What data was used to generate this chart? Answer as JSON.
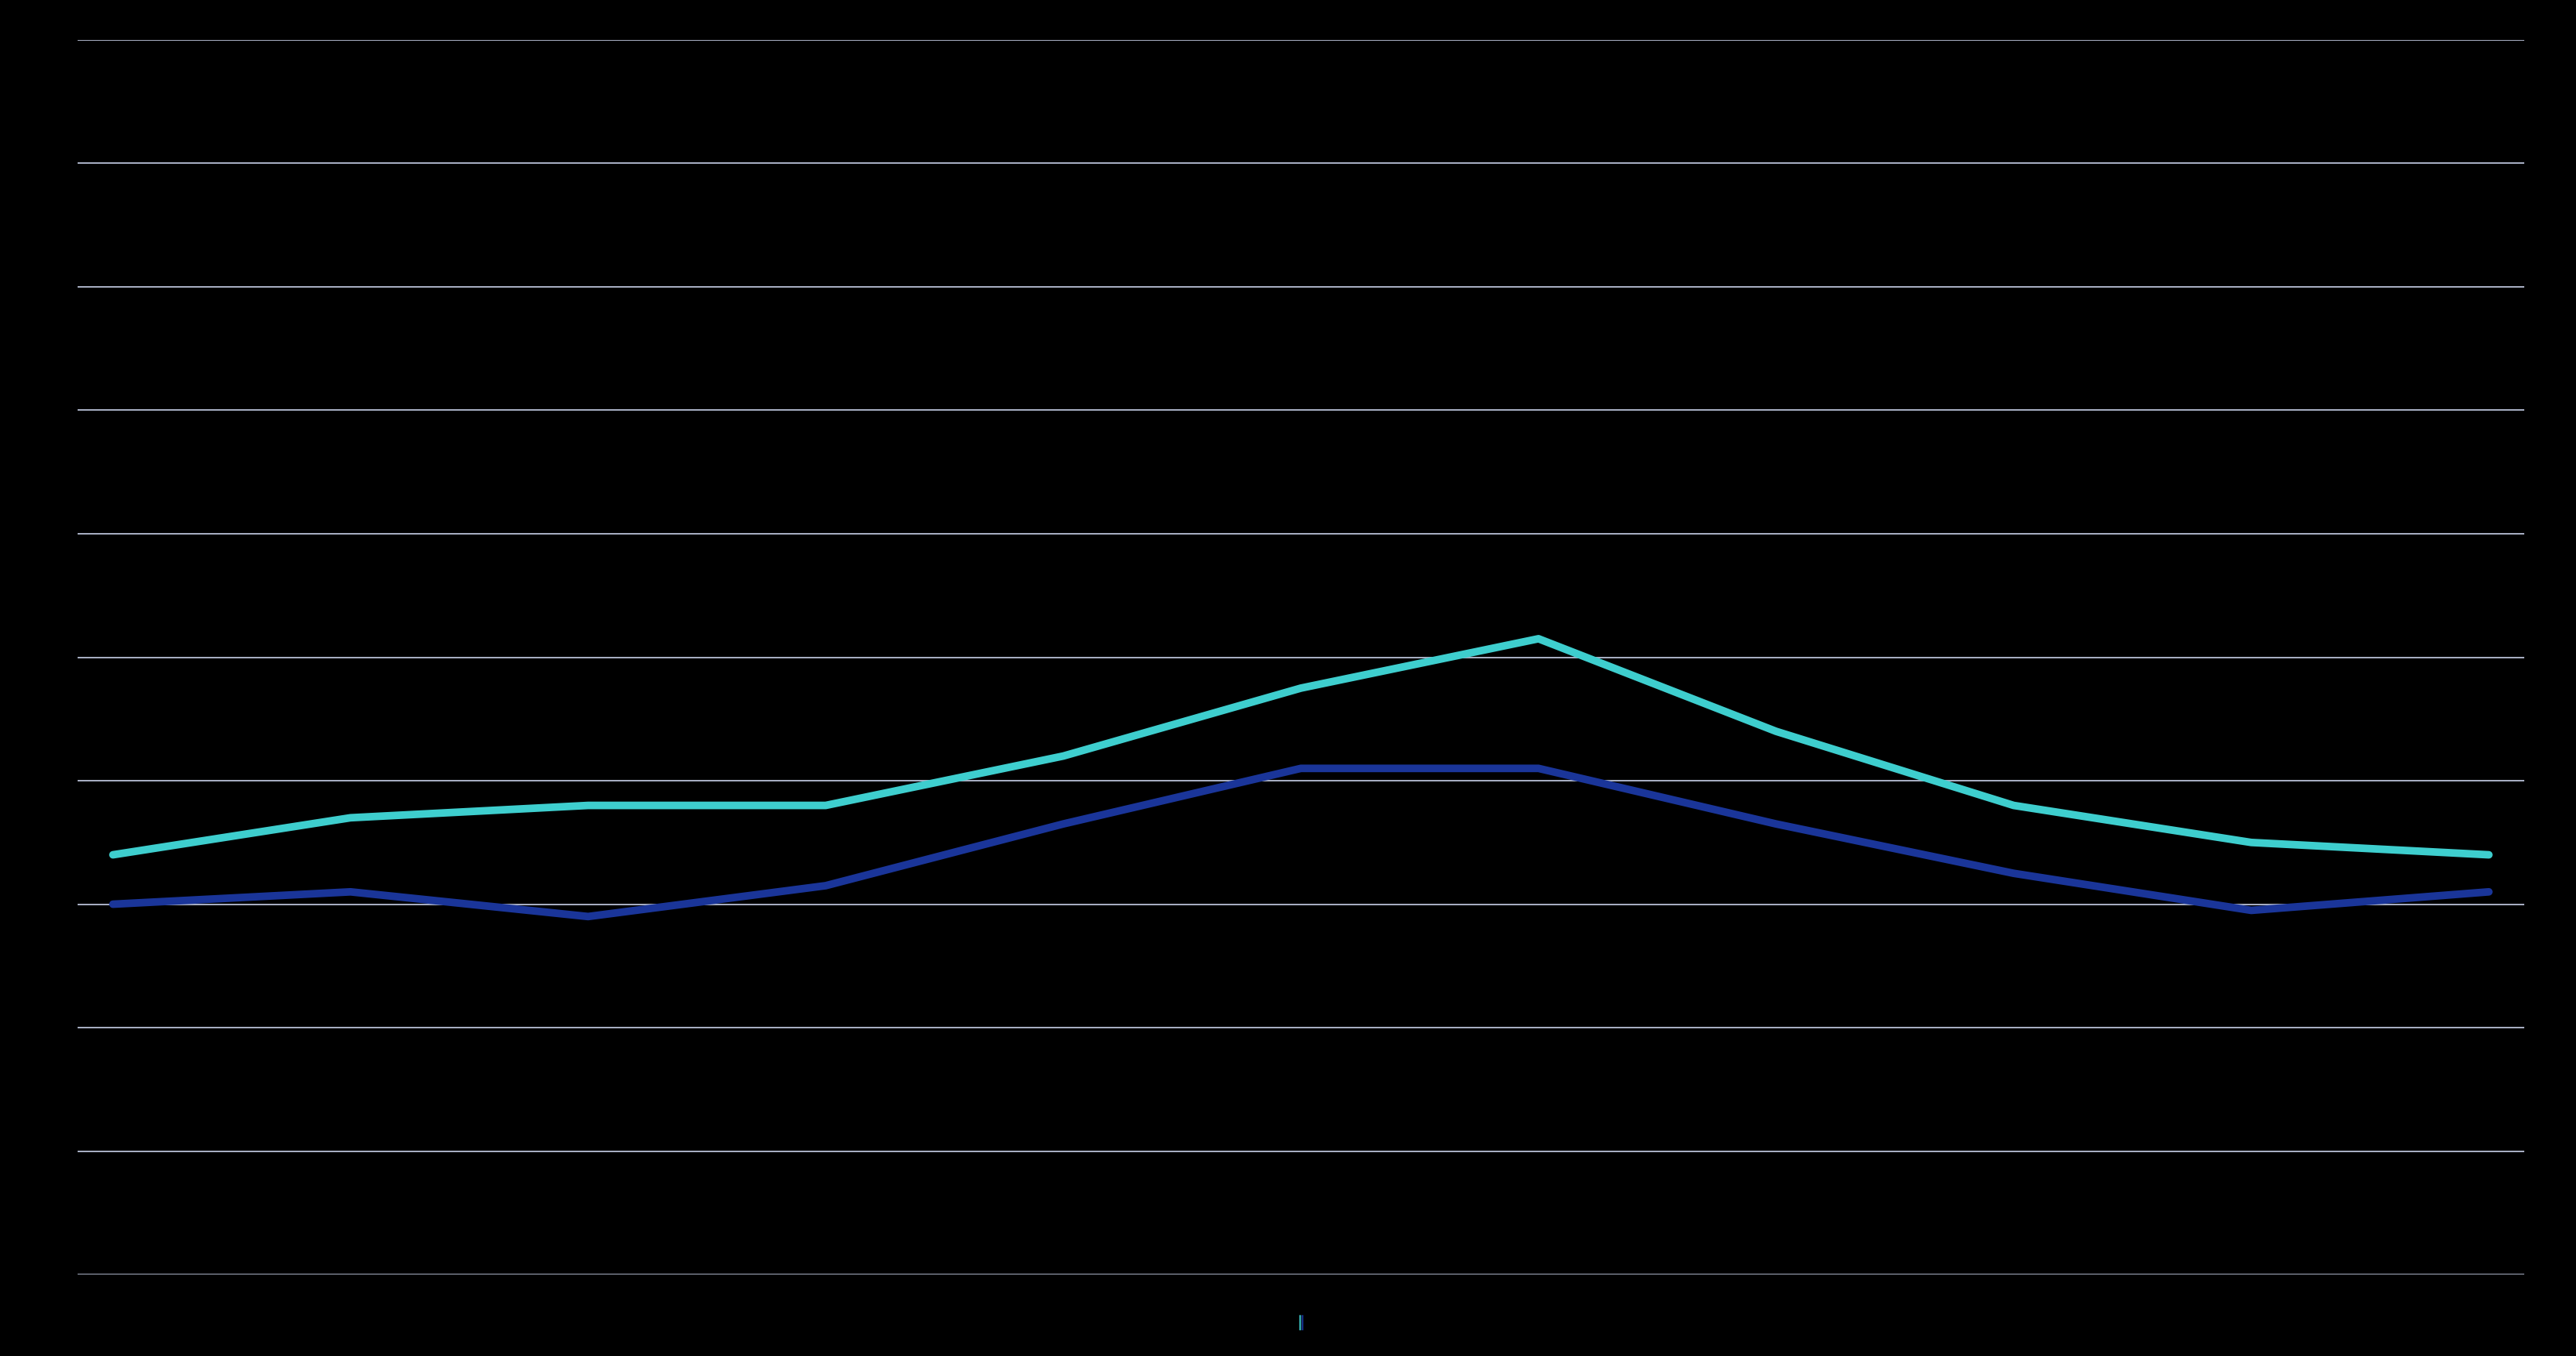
{
  "title": "",
  "background_color": "#000000",
  "plot_bg_color": "#000000",
  "grid_color": "#c8d0e8",
  "line1_color": "#3ecece",
  "line2_color": "#1a3599",
  "line1_label": "",
  "line2_label": "",
  "x_labels": [
    "",
    "",
    "",
    "",
    "",
    "",
    "",
    "",
    "",
    "",
    ""
  ],
  "line1_values": [
    68,
    74,
    76,
    76,
    84,
    95,
    103,
    88,
    76,
    70,
    68
  ],
  "line2_values": [
    60,
    62,
    58,
    63,
    73,
    82,
    82,
    73,
    65,
    59,
    62
  ],
  "ylim": [
    0,
    200
  ],
  "yticks": [
    0,
    20,
    40,
    60,
    80,
    100,
    120,
    140,
    160,
    180,
    200
  ],
  "legend_square1_color": "#3ecece",
  "legend_square2_color": "#1a3599",
  "title_fontsize": 26,
  "tick_fontsize": 22,
  "legend_fontsize": 22,
  "line_width": 7,
  "text_color": "#ffffff",
  "grid_linewidth": 1.2
}
